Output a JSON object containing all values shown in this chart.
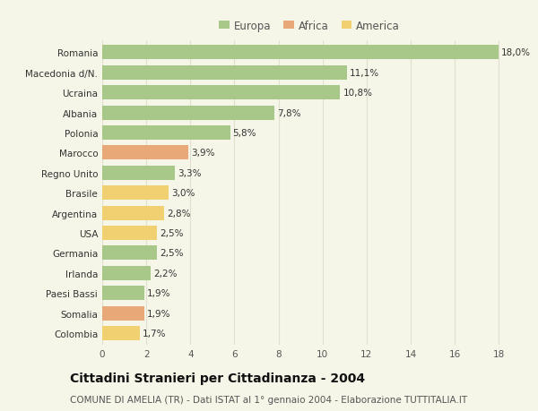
{
  "categories": [
    "Romania",
    "Macedonia d/N.",
    "Ucraina",
    "Albania",
    "Polonia",
    "Marocco",
    "Regno Unito",
    "Brasile",
    "Argentina",
    "USA",
    "Germania",
    "Irlanda",
    "Paesi Bassi",
    "Somalia",
    "Colombia"
  ],
  "values": [
    18.0,
    11.1,
    10.8,
    7.8,
    5.8,
    3.9,
    3.3,
    3.0,
    2.8,
    2.5,
    2.5,
    2.2,
    1.9,
    1.9,
    1.7
  ],
  "continents": [
    "Europa",
    "Europa",
    "Europa",
    "Europa",
    "Europa",
    "Africa",
    "Europa",
    "America",
    "America",
    "America",
    "Europa",
    "Europa",
    "Europa",
    "Africa",
    "America"
  ],
  "colors": {
    "Europa": "#a8c88a",
    "Africa": "#e8a878",
    "America": "#f0d070"
  },
  "title": "Cittadini Stranieri per Cittadinanza - 2004",
  "subtitle": "COMUNE DI AMELIA (TR) - Dati ISTAT al 1° gennaio 2004 - Elaborazione TUTTITALIA.IT",
  "xlim": [
    0,
    18
  ],
  "xticks": [
    0,
    2,
    4,
    6,
    8,
    10,
    12,
    14,
    16,
    18
  ],
  "background_color": "#f5f5e8",
  "grid_color": "#e0e0d0",
  "bar_height": 0.72,
  "title_fontsize": 10,
  "subtitle_fontsize": 7.5,
  "tick_fontsize": 7.5,
  "value_fontsize": 7.5,
  "legend_fontsize": 8.5
}
